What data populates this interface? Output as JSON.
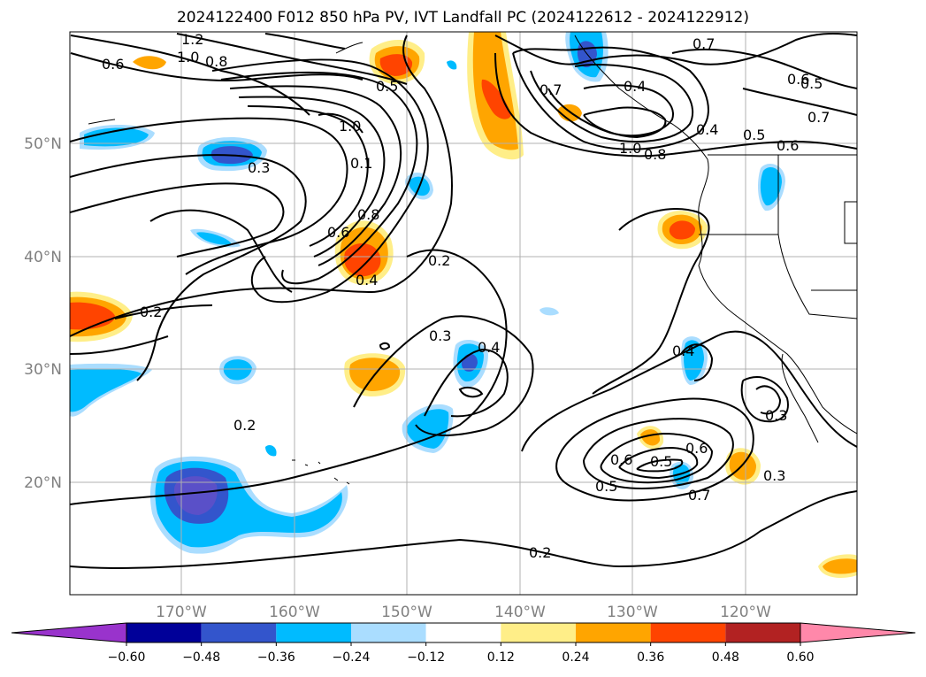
{
  "title": "2024122400 F012 850 hPa PV, IVT Landfall PC (2024122612 - 2024122912)",
  "axes": {
    "lon_labels": [
      "170°W",
      "160°W",
      "150°W",
      "140°W",
      "130°W",
      "120°W"
    ],
    "lat_labels": [
      "50°N",
      "40°N",
      "30°N",
      "20°N"
    ]
  },
  "colorbar": {
    "ticks": [
      "−0.60",
      "−0.48",
      "−0.36",
      "−0.24",
      "−0.12",
      "0.12",
      "0.24",
      "0.36",
      "0.48",
      "0.60"
    ],
    "colors": [
      "#9933cc",
      "#000099",
      "#3355cc",
      "#00bbff",
      "#aaddff",
      "#ffffff",
      "#ffee88",
      "#ffa500",
      "#ff4400",
      "#b22222",
      "#ff88aa"
    ]
  },
  "contour_labels": [
    "1.2",
    "1.0",
    "0.8",
    "0.6",
    "0.5",
    "0.3",
    "1.0",
    "0.1",
    "0.8",
    "0.6",
    "0.4",
    "0.2",
    "0.2",
    "0.3",
    "0.4",
    "0.2",
    "0.7",
    "0.4",
    "1.0",
    "0.8",
    "0.4",
    "0.5",
    "0.6",
    "0.7",
    "0.5",
    "0.6",
    "0.7",
    "0.6",
    "0.5",
    "0.6",
    "0.5",
    "0.7",
    "0.3",
    "0.3",
    "0.4"
  ]
}
